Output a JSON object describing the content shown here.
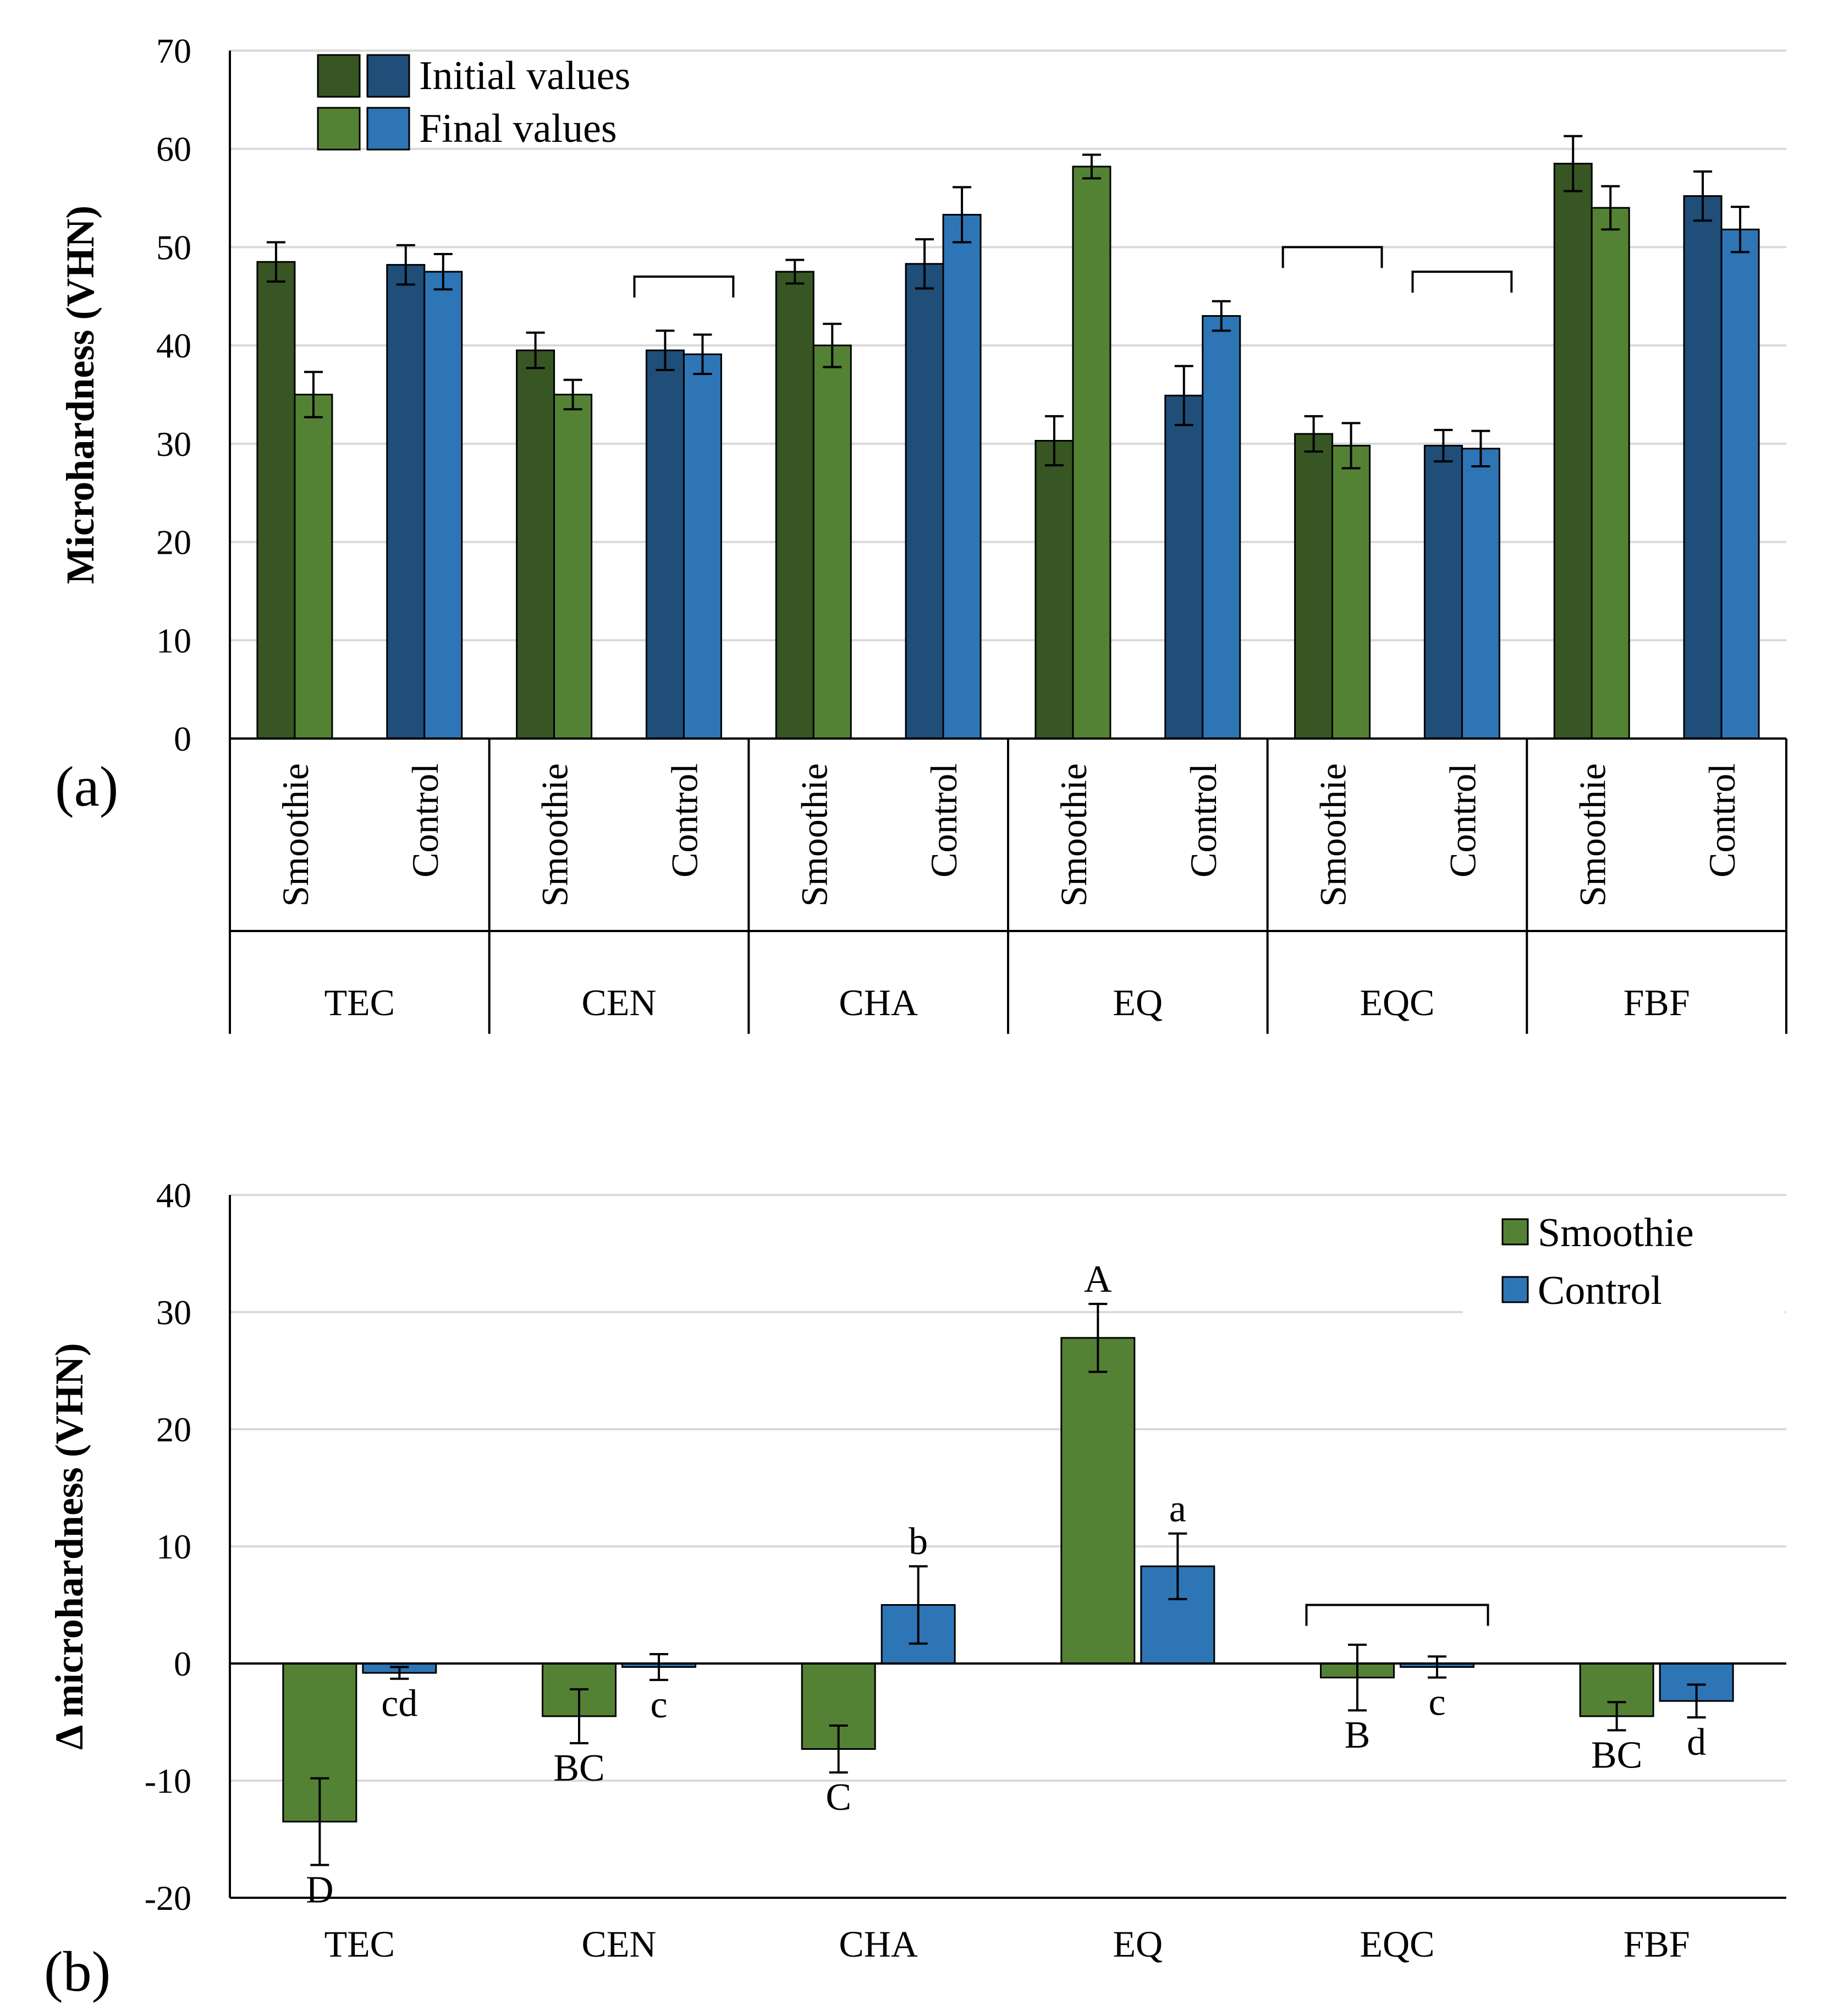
{
  "chart_data": [
    {
      "type": "bar",
      "panel_label": "(a)",
      "ylabel": "Microhardness (VHN)",
      "ylim": [
        0,
        70
      ],
      "yticks": [
        0,
        10,
        20,
        30,
        40,
        50,
        60,
        70
      ],
      "grid": true,
      "legend": [
        "Initial values",
        "Final values"
      ],
      "materials": [
        "TEC",
        "CEN",
        "CHA",
        "EQ",
        "EQC",
        "FBF"
      ],
      "groups": [
        "Smoothie",
        "Control"
      ],
      "colors": {
        "smoothie_initial": "#375623",
        "smoothie_final": "#548235",
        "control_initial": "#1F4E79",
        "control_final": "#2E75B6"
      },
      "series": [
        {
          "name": "Smoothie initial",
          "values": [
            48.5,
            39.5,
            47.5,
            30.3,
            31.0,
            58.5
          ],
          "errors": [
            2.0,
            1.8,
            1.2,
            2.5,
            1.8,
            2.8
          ]
        },
        {
          "name": "Smoothie final",
          "values": [
            35.0,
            35.0,
            40.0,
            58.2,
            29.8,
            54.0
          ],
          "errors": [
            2.3,
            1.5,
            2.2,
            1.2,
            2.3,
            2.2
          ]
        },
        {
          "name": "Control initial",
          "values": [
            48.2,
            39.5,
            48.3,
            34.9,
            29.8,
            55.2
          ],
          "errors": [
            2.0,
            2.0,
            2.5,
            3.0,
            1.6,
            2.5
          ]
        },
        {
          "name": "Control final",
          "values": [
            47.5,
            39.1,
            53.3,
            43.0,
            29.5,
            51.8
          ],
          "errors": [
            1.8,
            2.0,
            2.8,
            1.5,
            1.8,
            2.3
          ]
        }
      ],
      "brackets": [
        "CEN-Control",
        "EQC-Smoothie",
        "EQC-Control"
      ]
    },
    {
      "type": "bar",
      "panel_label": "(b)",
      "ylabel": "Δ microhardness (VHN)",
      "ylim": [
        -20,
        40
      ],
      "yticks": [
        -20,
        -10,
        0,
        10,
        20,
        30,
        40
      ],
      "grid": true,
      "categories": [
        "TEC",
        "CEN",
        "CHA",
        "EQ",
        "EQC",
        "FBF"
      ],
      "legend": [
        "Smoothie",
        "Control"
      ],
      "colors": {
        "smoothie": "#548235",
        "control": "#2E75B6"
      },
      "series": [
        {
          "name": "Smoothie",
          "values": [
            -13.5,
            -4.5,
            -7.3,
            27.8,
            -1.2,
            -4.5
          ],
          "errors": [
            3.7,
            2.3,
            2.0,
            2.9,
            2.8,
            1.2
          ],
          "letters": [
            "D",
            "BC",
            "C",
            "A",
            "B",
            "BC"
          ]
        },
        {
          "name": "Control",
          "values": [
            -0.8,
            -0.3,
            5.0,
            8.3,
            -0.3,
            -3.2
          ],
          "errors": [
            0.5,
            1.1,
            3.3,
            2.8,
            0.9,
            1.4
          ],
          "letters": [
            "cd",
            "c",
            "b",
            "a",
            "c",
            "d"
          ]
        }
      ],
      "brackets": [
        "EQC"
      ]
    }
  ]
}
